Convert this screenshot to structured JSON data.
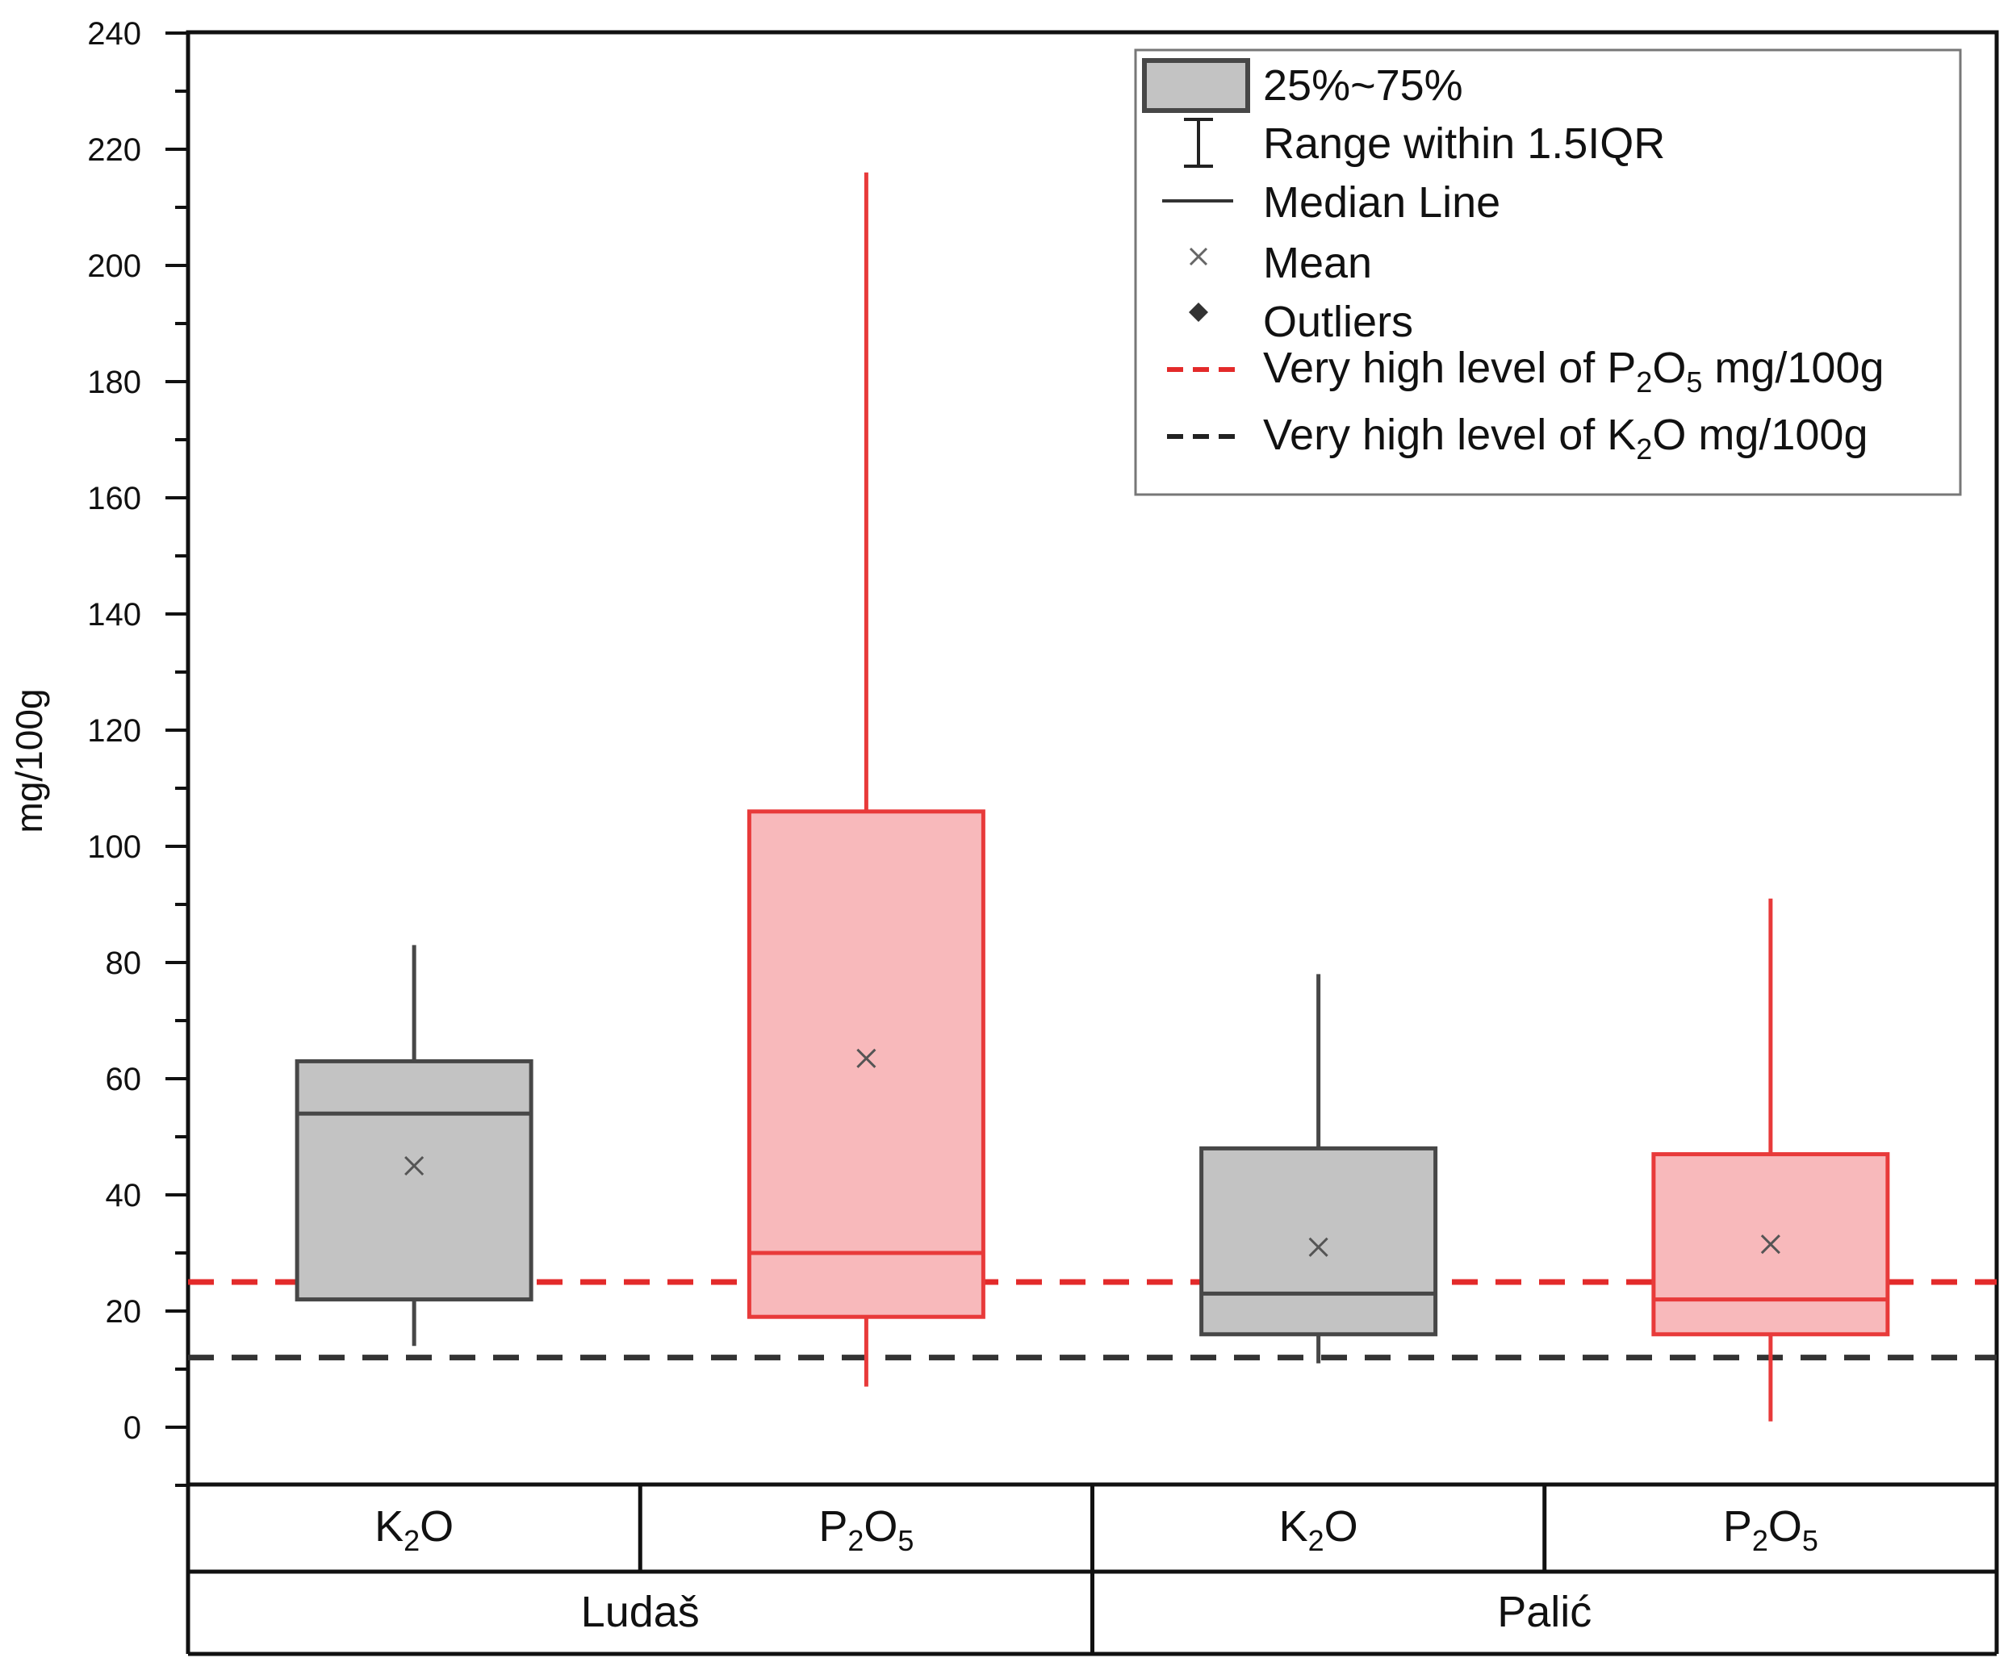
{
  "chart_data": {
    "type": "box",
    "ylabel": "mg/100g",
    "ylim": [
      -10,
      240
    ],
    "yticks": [
      0,
      20,
      40,
      60,
      80,
      100,
      120,
      140,
      160,
      180,
      200,
      220,
      240
    ],
    "groups": [
      {
        "name": "Ludaš",
        "categories": [
          "K2O",
          "P2O5"
        ]
      },
      {
        "name": "Palić",
        "categories": [
          "K2O",
          "P2O5"
        ]
      }
    ],
    "category_labels": [
      {
        "base": "K",
        "sub1": "2",
        "mid": "O",
        "sub2": ""
      },
      {
        "base": "P",
        "sub1": "2",
        "mid": "O",
        "sub2": "5"
      }
    ],
    "boxes": [
      {
        "group": "Ludaš",
        "category": "K2O",
        "color": "gray",
        "whisker_low": 14,
        "q1": 22,
        "median": 54,
        "q3": 63,
        "whisker_high": 83,
        "mean": 45
      },
      {
        "group": "Ludaš",
        "category": "P2O5",
        "color": "red",
        "whisker_low": 7,
        "q1": 19,
        "median": 30,
        "q3": 106,
        "whisker_high": 216,
        "mean": 63.5
      },
      {
        "group": "Palić",
        "category": "K2O",
        "color": "gray",
        "whisker_low": 11,
        "q1": 16,
        "median": 23,
        "q3": 48,
        "whisker_high": 78,
        "mean": 31
      },
      {
        "group": "Palić",
        "category": "P2O5",
        "color": "red",
        "whisker_low": 1,
        "q1": 16,
        "median": 22,
        "q3": 47,
        "whisker_high": 91,
        "mean": 31.5
      }
    ],
    "reference_lines": [
      {
        "name": "Very high level of P2O5 mg/100g",
        "value": 25,
        "color": "#e32a2a"
      },
      {
        "name": "Very high level of K2O mg/100g",
        "value": 12,
        "color": "#333333"
      }
    ],
    "legend": {
      "position": "top-right",
      "entries": [
        {
          "key": "box",
          "label": "25%~75%"
        },
        {
          "key": "whisker",
          "label": "Range within 1.5IQR"
        },
        {
          "key": "median",
          "label": "Median Line"
        },
        {
          "key": "mean",
          "label": "Mean"
        },
        {
          "key": "outlier",
          "label": "Outliers"
        },
        {
          "key": "p2o5-line",
          "label_pre": "Very high level of P",
          "sub1": "2",
          "label_mid": "O",
          "sub2": "5",
          "label_post": " mg/100g"
        },
        {
          "key": "k2o-line",
          "label_pre": "Very high level of K",
          "sub1": "2",
          "label_mid": "O",
          "sub2": "",
          "label_post": " mg/100g"
        }
      ]
    }
  },
  "colors": {
    "gray_fill": "#c3c3c3",
    "gray_stroke": "#474747",
    "red_fill": "#f8b9bb",
    "red_stroke": "#e83a3a",
    "axis": "#111111"
  }
}
